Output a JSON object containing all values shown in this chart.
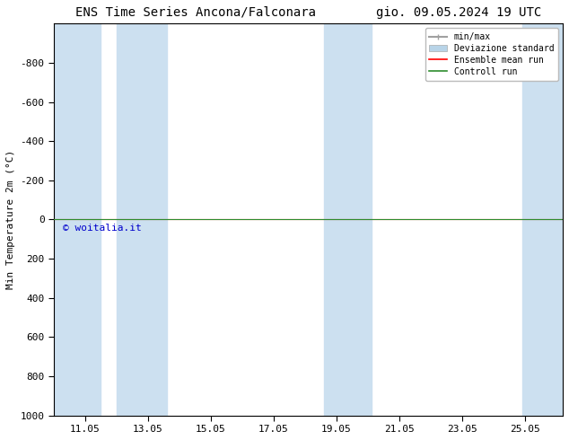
{
  "title_left": "ENS Time Series Ancona/Falconara",
  "title_right": "gio. 09.05.2024 19 UTC",
  "ylabel": "Min Temperature 2m (°C)",
  "xlabel": "",
  "ylim_top": -1000,
  "ylim_bottom": 1000,
  "yticks": [
    -800,
    -600,
    -400,
    -200,
    0,
    200,
    400,
    600,
    800,
    1000
  ],
  "x_tick_labels": [
    "11.05",
    "13.05",
    "15.05",
    "17.05",
    "19.05",
    "21.05",
    "23.05",
    "25.05"
  ],
  "x_tick_positions": [
    11.0,
    13.0,
    15.0,
    17.0,
    19.0,
    21.0,
    23.0,
    25.0
  ],
  "xlim": [
    10.0,
    26.2
  ],
  "background_color": "#ffffff",
  "plot_bg_color": "#ffffff",
  "shade_color": "#cce0f0",
  "shade_bands": [
    [
      10.0,
      11.5
    ],
    [
      12.0,
      13.6
    ],
    [
      18.6,
      19.5
    ],
    [
      19.5,
      20.1
    ],
    [
      24.9,
      26.2
    ]
  ],
  "control_run_y": 0.0,
  "ensemble_mean_y": 0.0,
  "line_color_control": "#2d8c2d",
  "line_color_ensemble": "#ff0000",
  "minmax_color": "#a0a0a0",
  "deviazione_color": "#b8d4e8",
  "watermark": "© woitalia.it",
  "watermark_color": "#0000cc",
  "legend_labels": [
    "min/max",
    "Deviazione standard",
    "Ensemble mean run",
    "Controll run"
  ],
  "legend_colors": [
    "#a0a0a0",
    "#b8d4e8",
    "#ff0000",
    "#2d8c2d"
  ],
  "title_fontsize": 10,
  "axis_fontsize": 8,
  "tick_fontsize": 8
}
